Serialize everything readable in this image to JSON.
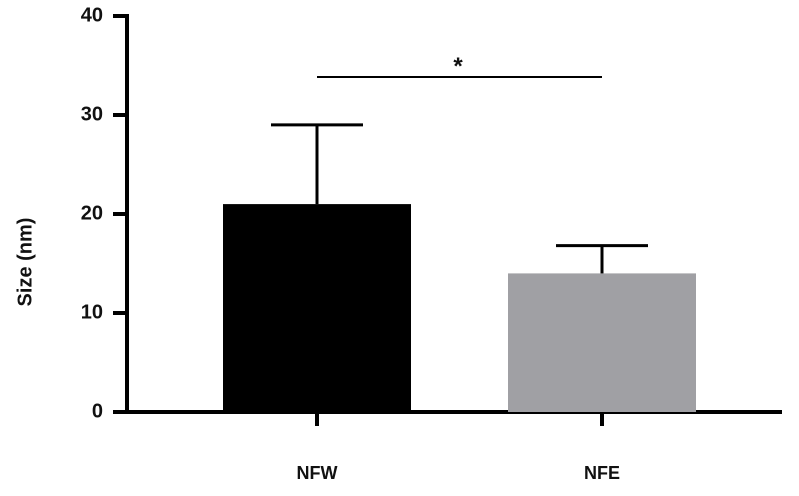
{
  "chart_data": {
    "type": "bar",
    "categories": [
      "NFW",
      "NFE"
    ],
    "values": [
      21,
      14
    ],
    "error_upper": [
      29,
      16.8
    ],
    "colors": [
      "#000000",
      "#a0a0a4"
    ],
    "title": "",
    "xlabel": "",
    "ylabel": "Size (nm)",
    "ylim": [
      0,
      40
    ],
    "yticks": [
      0,
      10,
      20,
      30,
      40
    ],
    "ytick_labels": [
      "0",
      "10",
      "20",
      "30",
      "40"
    ],
    "grid": false,
    "significance": {
      "between": [
        "NFW",
        "NFE"
      ],
      "label": "*"
    }
  }
}
